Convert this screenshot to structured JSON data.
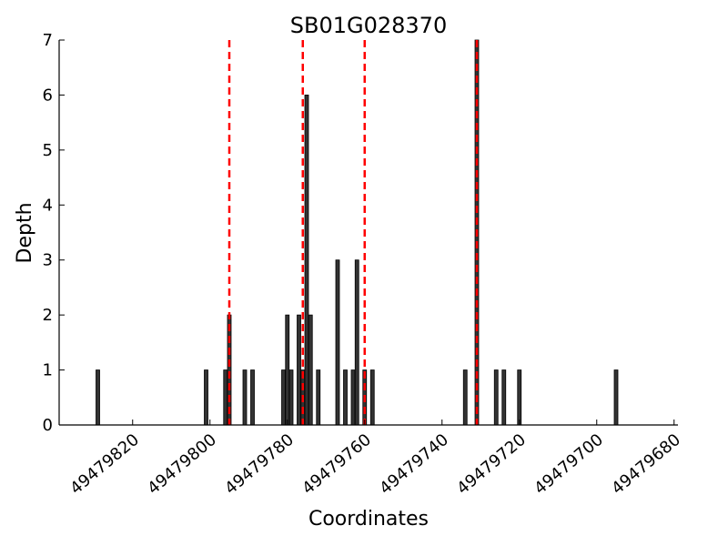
{
  "chart_data": {
    "type": "bar",
    "title": "SB01G028370",
    "xlabel": "Coordinates",
    "ylabel": "Depth",
    "xlim": [
      49479839,
      49479679
    ],
    "ylim": [
      0,
      7
    ],
    "x_reversed": true,
    "x_ticks": [
      49479820,
      49479800,
      49479780,
      49479760,
      49479740,
      49479720,
      49479700,
      49479680
    ],
    "y_ticks": [
      0,
      1,
      2,
      3,
      4,
      5,
      6,
      7
    ],
    "bar_color": "#333333",
    "bar_edge_color": "#000000",
    "vline_color": "#ff0000",
    "vlines": [
      49479795,
      49479776,
      49479760,
      49479731
    ],
    "series": [
      {
        "x": [
          49479829,
          49479801,
          49479796,
          49479795,
          49479791,
          49479789,
          49479781,
          49479780,
          49479779,
          49479777,
          49479776,
          49479775,
          49479774,
          49479772,
          49479767,
          49479765,
          49479763,
          49479762,
          49479760,
          49479758,
          49479734,
          49479731,
          49479726,
          49479724,
          49479720,
          49479695
        ],
        "values": [
          1,
          1,
          1,
          2,
          1,
          1,
          1,
          2,
          1,
          2,
          1,
          6,
          2,
          1,
          3,
          1,
          1,
          3,
          1,
          1,
          1,
          7,
          1,
          1,
          1,
          1
        ]
      }
    ]
  }
}
